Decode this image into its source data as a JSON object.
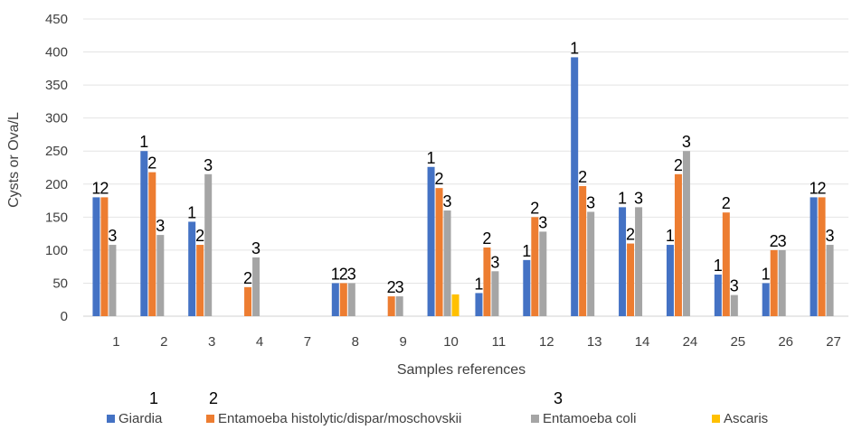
{
  "chart_data": {
    "type": "bar",
    "title": "",
    "xlabel": "Samples references",
    "ylabel": "Cysts or Ova/L",
    "ylim": [
      0,
      450
    ],
    "yticks": [
      0,
      50,
      100,
      150,
      200,
      250,
      300,
      350,
      400,
      450
    ],
    "grid": "horizontal",
    "legend_position": "bottom",
    "categories": [
      "1",
      "2",
      "3",
      "4",
      "7",
      "8",
      "9",
      "10",
      "11",
      "12",
      "13",
      "14",
      "24",
      "25",
      "26",
      "27"
    ],
    "series": [
      {
        "name": "Giardia",
        "label_marker": "1",
        "color": "#4472C4",
        "values": [
          180,
          250,
          143,
          0,
          0,
          50,
          0,
          226,
          35,
          85,
          392,
          165,
          108,
          63,
          50,
          180
        ]
      },
      {
        "name": "Entamoeba histolytic/dispar/moschovskii",
        "label_marker": "2",
        "color": "#ED7D31",
        "values": [
          180,
          218,
          108,
          44,
          0,
          50,
          30,
          194,
          104,
          150,
          197,
          110,
          215,
          157,
          100,
          180
        ]
      },
      {
        "name": "Entamoeba coli",
        "label_marker": "3",
        "color": "#A5A5A5",
        "values": [
          108,
          123,
          215,
          89,
          0,
          50,
          30,
          160,
          68,
          128,
          158,
          165,
          250,
          32,
          100,
          108
        ]
      },
      {
        "name": "Ascaris",
        "label_marker": "",
        "color": "#FFC000",
        "values": [
          0,
          0,
          0,
          0,
          0,
          0,
          0,
          33,
          0,
          0,
          0,
          0,
          0,
          0,
          0,
          0
        ]
      }
    ]
  }
}
